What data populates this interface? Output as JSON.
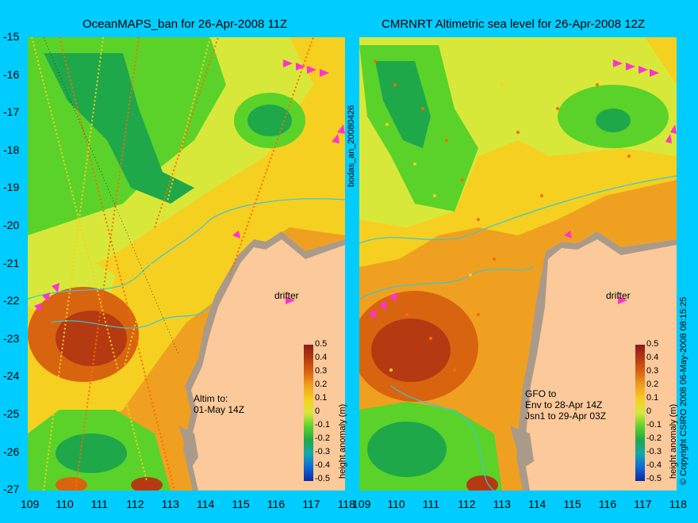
{
  "panels": [
    {
      "title": "OceanMAPS_ban for 26-Apr-2008 11Z",
      "notes": "Altim to:\n01-May 14Z",
      "drifter_label": "drifter"
    },
    {
      "title": "CMRNRT Altimetric sea level  for 26-Apr-2008 12Z",
      "notes": "GFO to\nEnv to 28-Apr 14Z\nJsn1 to 29-Apr 03Z",
      "drifter_label": "drifter"
    }
  ],
  "axes": {
    "x_ticks": [
      "109",
      "110",
      "111",
      "112",
      "113",
      "114",
      "115",
      "116",
      "117",
      "118"
    ],
    "y_ticks": [
      "-15",
      "-16",
      "-17",
      "-18",
      "-19",
      "-20",
      "-21",
      "-22",
      "-23",
      "-24",
      "-25",
      "-26",
      "-27"
    ],
    "x_range": [
      109,
      118
    ],
    "y_range": [
      -27,
      -15
    ]
  },
  "colorbar": {
    "label": "height anomaly (m)",
    "ticks": [
      "0.5",
      "0.4",
      "0.3",
      "0.2",
      "0.1",
      "0",
      "-0.1",
      "-0.2",
      "-0.3",
      "-0.4",
      "-0.5"
    ],
    "colors": [
      "#8b1a1a",
      "#b53a12",
      "#d9640f",
      "#f0a020",
      "#f5d020",
      "#d8e83a",
      "#5bd22a",
      "#1fa84a",
      "#12a8b0",
      "#1068d8",
      "#0a2aa0"
    ]
  },
  "side_labels": {
    "middle": "bodas_an_20080426",
    "right": "© Copyright CSIRO 2008   06-May-2008 08:15:25"
  }
}
